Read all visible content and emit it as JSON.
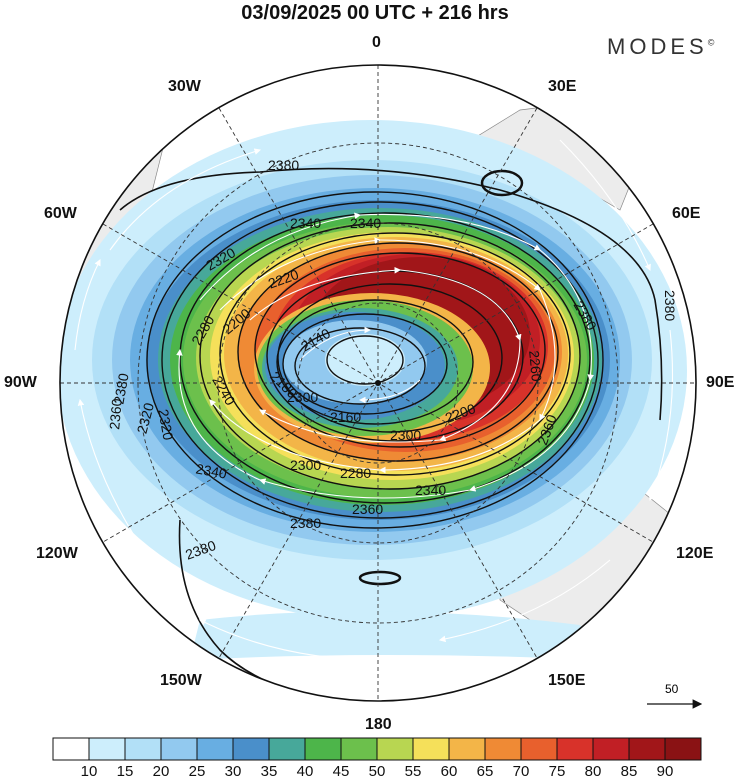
{
  "title": "03/09/2025  00 UTC  + 216 hrs",
  "brand": "MODES",
  "brand_mark": "©",
  "lon_labels": {
    "n0": "0",
    "e30": "30E",
    "e60": "60E",
    "e90": "90E",
    "e120": "120E",
    "e150": "150E",
    "s180": "180",
    "w150": "150W",
    "w120": "120W",
    "w90": "90W",
    "w60": "60W",
    "w30": "30W"
  },
  "contour_labels": [
    "2380",
    "2380",
    "2380",
    "2380",
    "2380",
    "2380",
    "2340",
    "2340",
    "2340",
    "2320",
    "2320",
    "2300",
    "2300",
    "2280",
    "2280",
    "2260",
    "2220",
    "2200",
    "2200",
    "2180",
    "2160",
    "2140",
    "2240",
    "2300",
    "2320",
    "2360",
    "2360",
    "2360",
    "2340"
  ],
  "reference_vector": {
    "label": "50"
  },
  "colorbar": {
    "ticks": [
      "10",
      "15",
      "20",
      "25",
      "30",
      "35",
      "40",
      "45",
      "50",
      "55",
      "60",
      "65",
      "70",
      "75",
      "80",
      "85",
      "90"
    ],
    "colors": [
      "#ffffff",
      "#cdeefc",
      "#b2e0f7",
      "#92c9ef",
      "#68aee2",
      "#4a8fca",
      "#47a89a",
      "#4db54a",
      "#6cc04c",
      "#b8d651",
      "#f5e05a",
      "#f3b548",
      "#ef8a35",
      "#e8602d",
      "#d8322a",
      "#c11f25",
      "#a11619",
      "#8a1214"
    ]
  },
  "icons": {
    "reference_arrow": "arrow-right-icon"
  }
}
